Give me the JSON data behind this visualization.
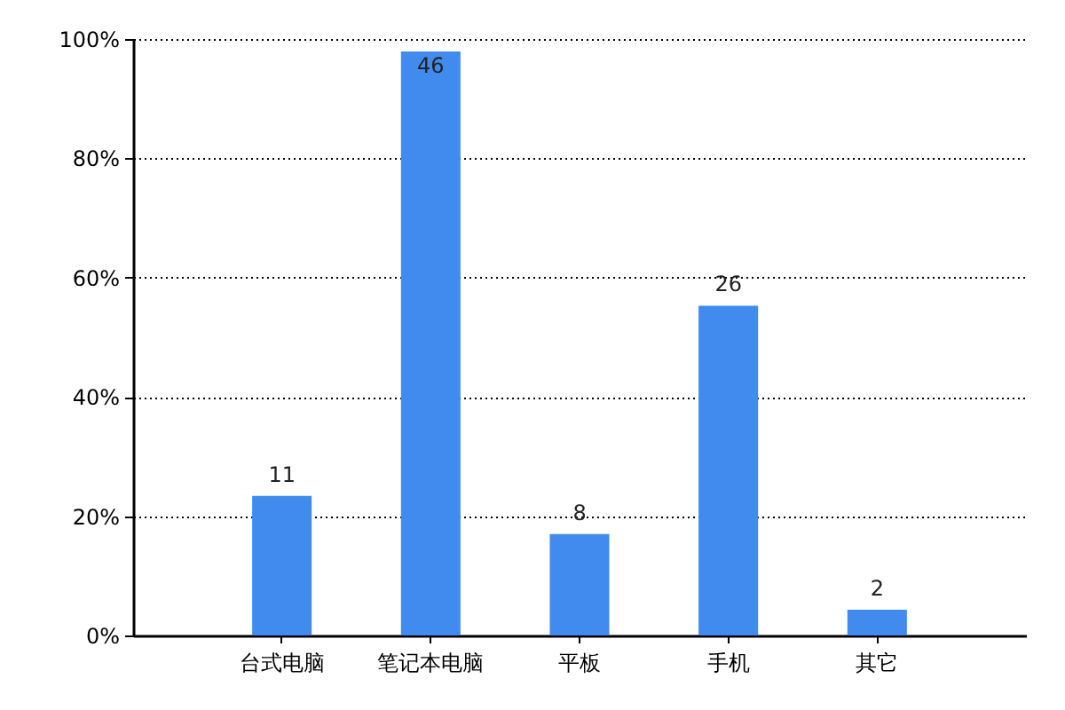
{
  "chart_data": {
    "type": "bar",
    "categories": [
      "台式电脑",
      "笔记本电脑",
      "平板",
      "手机",
      "其它"
    ],
    "values": [
      23.4,
      97.9,
      17.0,
      55.3,
      4.3
    ],
    "color": "#418bee",
    "ylim": [
      0,
      100
    ],
    "yticks": [
      {
        "value": 0,
        "label": "0%"
      },
      {
        "value": 20,
        "label": "20%"
      },
      {
        "value": 40,
        "label": "40%"
      },
      {
        "value": 60,
        "label": "60%"
      },
      {
        "value": 80,
        "label": "80%"
      },
      {
        "value": 100,
        "label": "100%"
      }
    ],
    "grid": "y",
    "annotations": [
      {
        "text": "11",
        "x": "台式电脑",
        "y": 23.4
      },
      {
        "text": "46",
        "x": "笔记本电脑",
        "y": 97.9
      },
      {
        "text": "8",
        "x": "平板",
        "y": 17.0
      },
      {
        "text": "26",
        "x": "手机",
        "y": 55.3
      },
      {
        "text": "2",
        "x": "其它",
        "y": 4.3
      }
    ]
  }
}
